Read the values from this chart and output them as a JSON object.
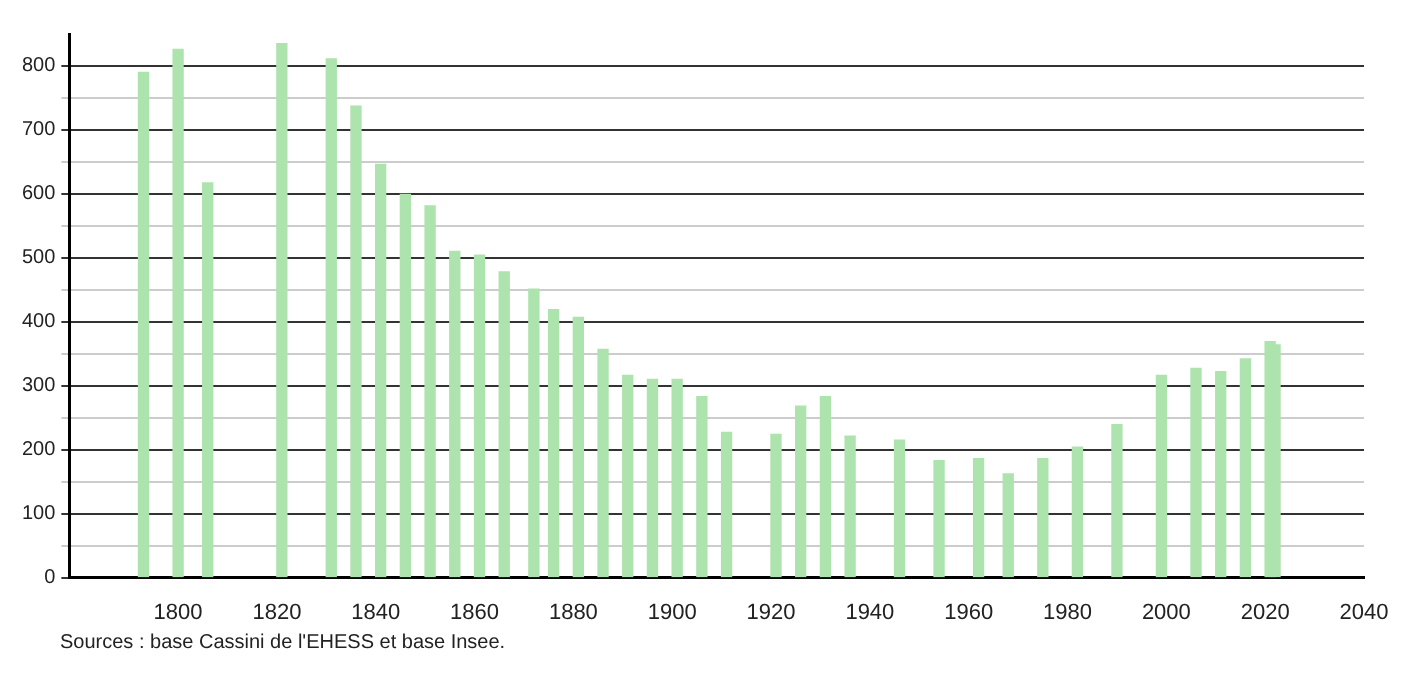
{
  "chart_data": {
    "type": "bar",
    "x": [
      1793,
      1800,
      1806,
      1821,
      1831,
      1836,
      1841,
      1846,
      1851,
      1856,
      1861,
      1866,
      1872,
      1876,
      1881,
      1886,
      1891,
      1896,
      1901,
      1906,
      1911,
      1921,
      1926,
      1931,
      1936,
      1946,
      1954,
      1962,
      1968,
      1975,
      1982,
      1990,
      1999,
      2006,
      2011,
      2016,
      2021,
      2022
    ],
    "values": [
      790,
      826,
      617,
      835,
      811,
      737,
      646,
      599,
      581,
      510,
      504,
      478,
      451,
      419,
      407,
      357,
      316,
      310,
      310,
      283,
      227,
      224,
      268,
      283,
      221,
      215,
      183,
      186,
      162,
      186,
      204,
      239,
      316,
      327,
      322,
      342,
      369,
      364
    ],
    "color": "#ade3ad",
    "xlim": [
      1778,
      2040
    ],
    "xticks": [
      1800,
      1820,
      1840,
      1860,
      1880,
      1900,
      1920,
      1940,
      1960,
      1980,
      2000,
      2020,
      2040
    ],
    "ylim": [
      0,
      850
    ],
    "yticks": [
      0,
      {
        "value": 50,
        "label": null
      },
      100,
      {
        "value": 150,
        "label": null
      },
      200,
      {
        "value": 250,
        "label": null
      },
      300,
      {
        "value": 350,
        "label": null
      },
      400,
      {
        "value": 450,
        "label": null
      },
      500,
      {
        "value": 550,
        "label": null
      },
      600,
      {
        "value": 650,
        "label": null
      },
      700,
      {
        "value": 750,
        "label": null
      },
      800
    ],
    "grid": "y",
    "legend": false,
    "annotations": [
      "Sources : base Cassini de l'EHESS et base Insee."
    ]
  }
}
